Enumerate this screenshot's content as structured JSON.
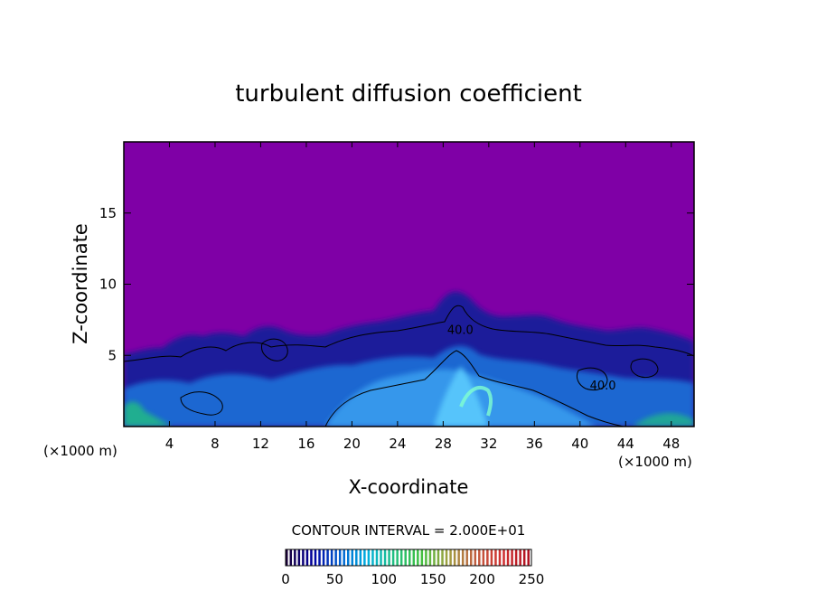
{
  "chart_data": {
    "type": "heatmap",
    "title": "turbulent diffusion coefficient",
    "xlabel": "X-coordinate",
    "ylabel": "Z-coordinate",
    "x_unit": "(×1000 m)",
    "y_unit": "(×1000 m)",
    "xlim": [
      0,
      50
    ],
    "ylim": [
      0,
      20
    ],
    "x_ticks": [
      4,
      8,
      12,
      16,
      20,
      24,
      28,
      32,
      36,
      40,
      44,
      48
    ],
    "y_ticks": [
      5,
      10,
      15
    ],
    "contour_interval": "CONTOUR INTERVAL = 2.000E+01",
    "contour_labels": [
      {
        "text": "40.0",
        "x": 29.5,
        "z": 6.5
      },
      {
        "text": "40.0",
        "x": 42.0,
        "z": 2.6
      }
    ],
    "colorbar": {
      "min": 0,
      "max": 250,
      "ticks": [
        0,
        50,
        100,
        150,
        200,
        250
      ],
      "colors": [
        "#1a003a",
        "#0000a0",
        "#0060d0",
        "#00b0e0",
        "#20c080",
        "#40c040",
        "#a0a040",
        "#c06040",
        "#d03030",
        "#b01020"
      ]
    },
    "background_color": "#7f00a6",
    "grid": false
  }
}
